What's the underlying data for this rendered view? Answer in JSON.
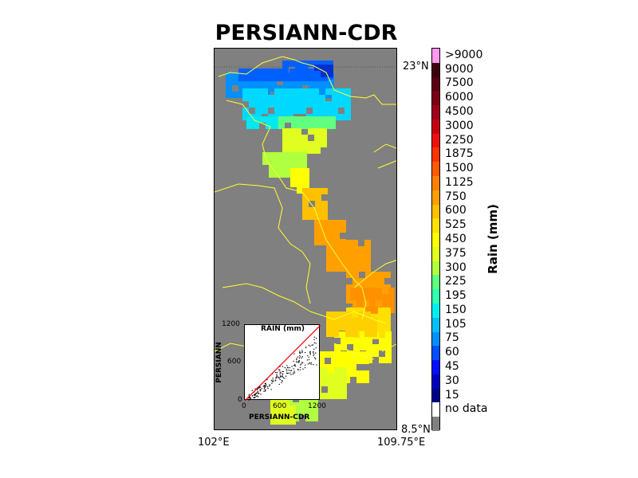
{
  "title": "PERSIANN-CDR",
  "axes": {
    "lon_min_label": "102°E",
    "lon_max_label": "109.75°E",
    "lat_max_label": "23°N",
    "lat_min_label": "8.5°N"
  },
  "inset": {
    "title": "RAIN (mm)",
    "xlabel": "PERSIANN-CDR",
    "ylabel": "PERSIANN",
    "ticks": [
      "0",
      "600",
      "1200"
    ]
  },
  "colorbar": {
    "title": "Rain (mm)",
    "labels": [
      ">9000",
      "9000",
      "7500",
      "6000",
      "4500",
      "3000",
      "2250",
      "1875",
      "1500",
      "1125",
      "750",
      "600",
      "525",
      "450",
      "375",
      "300",
      "225",
      "195",
      "150",
      "105",
      "75",
      "60",
      "45",
      "30",
      "15",
      "no data"
    ],
    "colors": [
      "#ff99ee",
      "#3d0010",
      "#5a0010",
      "#7a0014",
      "#a0001a",
      "#c80010",
      "#ee1010",
      "#ff3300",
      "#ff5a00",
      "#ff8000",
      "#ffa000",
      "#ffc000",
      "#ffe000",
      "#ffff00",
      "#e0ff20",
      "#b0ff40",
      "#60ff80",
      "#30ffb0",
      "#00f0f0",
      "#00c0ff",
      "#0090ff",
      "#0050ff",
      "#0010ff",
      "#0000c0",
      "#00008b",
      "#ffffff",
      "#808080"
    ]
  },
  "colors": {
    "background": "#808080",
    "border_lines": "#ffff33",
    "one_to_one_line": "#ff0000"
  }
}
